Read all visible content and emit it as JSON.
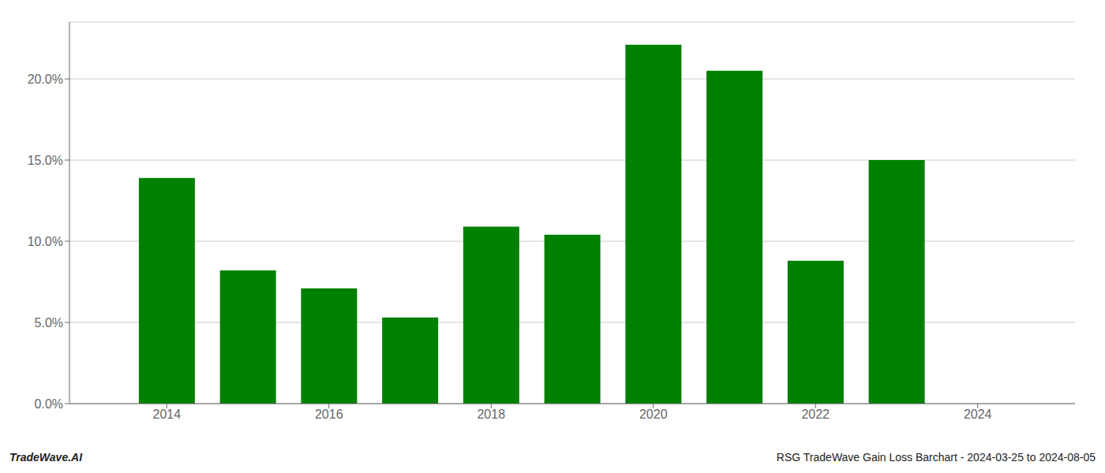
{
  "chart_data": {
    "type": "bar",
    "x": [
      2014,
      2015,
      2016,
      2017,
      2018,
      2019,
      2020,
      2021,
      2022,
      2023
    ],
    "values": [
      0.139,
      0.082,
      0.071,
      0.053,
      0.109,
      0.104,
      0.221,
      0.205,
      0.088,
      0.15
    ],
    "color": "#008000",
    "xlim": [
      2012.8,
      2025.2
    ],
    "xticks": [
      2014,
      2016,
      2018,
      2020,
      2022,
      2024
    ],
    "ylim": [
      0,
      0.235
    ],
    "yticks": [
      {
        "value": 0.0,
        "label": "0.0%"
      },
      {
        "value": 0.05,
        "label": "5.0%"
      },
      {
        "value": 0.1,
        "label": "10.0%"
      },
      {
        "value": 0.15,
        "label": "15.0%"
      },
      {
        "value": 0.2,
        "label": "20.0%"
      }
    ],
    "grid": true,
    "annotations": [
      "TradeWave.AI",
      "RSG TradeWave Gain Loss Barchart - 2024-03-25 to 2024-08-05"
    ]
  }
}
